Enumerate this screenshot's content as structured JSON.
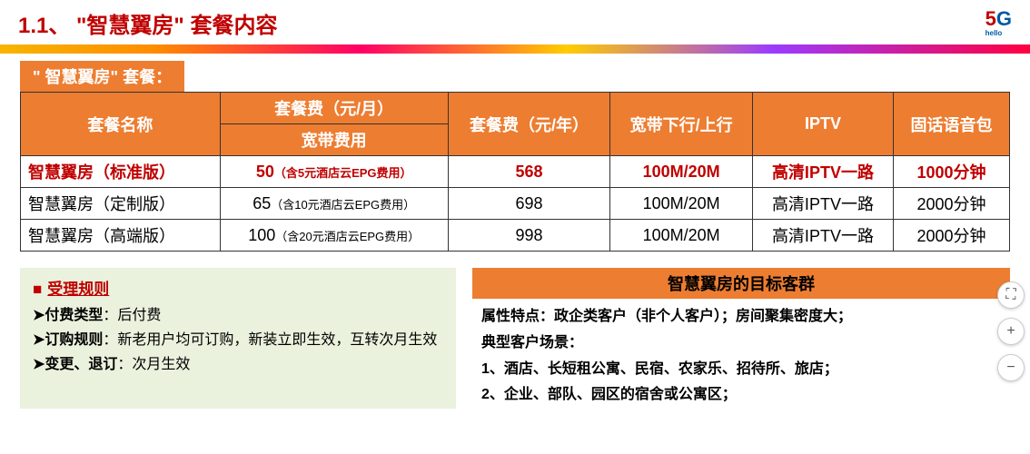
{
  "page": {
    "title": "1.1、 \"智慧翼房\" 套餐内容",
    "logo": {
      "five": "5",
      "g": "G",
      "sub": "hello"
    }
  },
  "tab": {
    "label": "\" 智慧翼房\" 套餐："
  },
  "table": {
    "headers": {
      "name": "套餐名称",
      "fee_month_group": "套餐费（元/月）",
      "fee_month_sub": "宽带费用",
      "fee_year": "套餐费（元/年）",
      "bandwidth": "宽带下行/上行",
      "iptv": "IPTV",
      "voice": "固话语音包"
    },
    "rows": [
      {
        "name": "智慧翼房（标准版）",
        "fee_month": "50",
        "fee_month_note": "（含5元酒店云EPG费用）",
        "fee_year": "568",
        "bandwidth": "100M/20M",
        "iptv": "高清IPTV一路",
        "voice": "1000分钟",
        "highlight": true
      },
      {
        "name": "智慧翼房（定制版）",
        "fee_month": "65",
        "fee_month_note": "（含10元酒店云EPG费用）",
        "fee_year": "698",
        "bandwidth": "100M/20M",
        "iptv": "高清IPTV一路",
        "voice": "2000分钟",
        "highlight": false
      },
      {
        "name": "智慧翼房（高端版）",
        "fee_month": "100",
        "fee_month_note": "（含20元酒店云EPG费用）",
        "fee_year": "998",
        "bandwidth": "100M/20M",
        "iptv": "高清IPTV一路",
        "voice": "2000分钟",
        "highlight": false
      }
    ]
  },
  "rules": {
    "title": "受理规则",
    "items": [
      {
        "label": "付费类型",
        "text": "：后付费"
      },
      {
        "label": "订购规则",
        "text": "：新老用户均可订购，新装立即生效，互转次月生效"
      },
      {
        "label": "变更、退订",
        "text": "：次月生效"
      }
    ]
  },
  "target": {
    "header": "智慧翼房的目标客群",
    "attr": "属性特点：政企类客户（非个人客户）；房间聚集密度大；",
    "scene_label": "典型客户场景：",
    "scenes": [
      "1、酒店、长短租公寓、民宿、农家乐、招待所、旅店；",
      "2、企业、部队、园区的宿舍或公寓区；"
    ]
  },
  "controls": {
    "full": "⛶",
    "plus": "+",
    "minus": "−"
  },
  "colors": {
    "accent_orange": "#ed7d31",
    "accent_red": "#c00000",
    "rules_bg": "#eaf1dd"
  }
}
